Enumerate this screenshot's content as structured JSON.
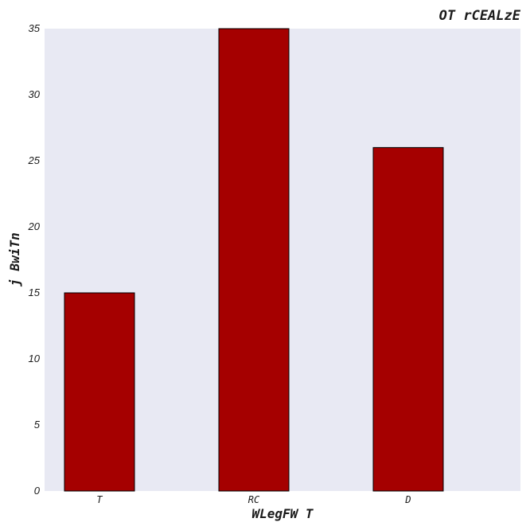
{
  "chart_data": {
    "type": "bar",
    "title": "OT rCEALzE",
    "xlabel": "WLegFW T",
    "ylabel": "j BwiTn",
    "categories": [
      "T",
      "RC",
      "D"
    ],
    "values": [
      15,
      35,
      26
    ],
    "ylim": [
      0,
      35
    ],
    "yticks": [
      0,
      5,
      10,
      15,
      20,
      25,
      30,
      35
    ],
    "grid": false,
    "legend": "none",
    "colors": {
      "bar": "#a50000",
      "bar_edge": "#000000",
      "plot_background": "#e8e9f3"
    }
  }
}
